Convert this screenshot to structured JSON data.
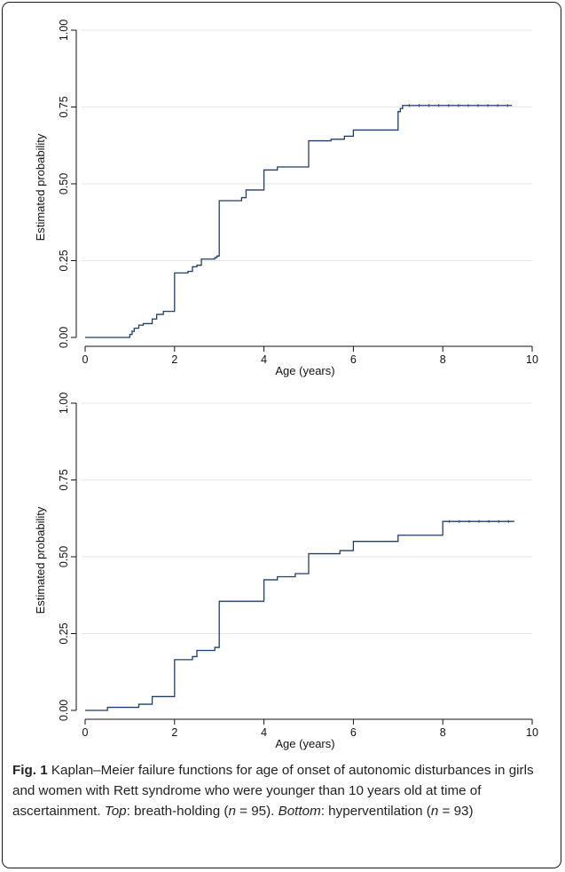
{
  "chart_data": [
    {
      "type": "line",
      "title": "",
      "xlabel": "Age (years)",
      "ylabel": "Estimated probability",
      "xlim": [
        0,
        10
      ],
      "ylim": [
        0,
        1
      ],
      "xticks": [
        "0",
        "2",
        "4",
        "6",
        "8",
        "10"
      ],
      "yticks": [
        "0.00",
        "0.25",
        "0.50",
        "0.75",
        "1.00"
      ],
      "grid": true,
      "step": true,
      "series": [
        {
          "color": "#1f3f6b",
          "x": [
            0,
            1.0,
            1.05,
            1.1,
            1.2,
            1.3,
            1.5,
            1.6,
            1.75,
            2.0,
            2.3,
            2.4,
            2.5,
            2.6,
            2.9,
            2.95,
            3.0,
            3.5,
            3.6,
            4.0,
            4.3,
            5.0,
            5.5,
            5.8,
            6.0,
            7.0,
            7.05,
            7.1,
            9.55
          ],
          "y": [
            0,
            0.01,
            0.02,
            0.03,
            0.04,
            0.045,
            0.06,
            0.075,
            0.085,
            0.21,
            0.215,
            0.23,
            0.235,
            0.255,
            0.26,
            0.265,
            0.445,
            0.455,
            0.48,
            0.545,
            0.555,
            0.64,
            0.645,
            0.655,
            0.675,
            0.735,
            0.745,
            0.755,
            0.755
          ]
        }
      ]
    },
    {
      "type": "line",
      "title": "",
      "xlabel": "Age (years)",
      "ylabel": "Estimated probability",
      "xlim": [
        0,
        10
      ],
      "ylim": [
        0,
        1
      ],
      "xticks": [
        "0",
        "2",
        "4",
        "6",
        "8",
        "10"
      ],
      "yticks": [
        "0.00",
        "0.25",
        "0.50",
        "0.75",
        "1.00"
      ],
      "grid": true,
      "step": true,
      "series": [
        {
          "color": "#1f3f6b",
          "x": [
            0,
            0.5,
            1.2,
            1.5,
            2.0,
            2.4,
            2.5,
            2.9,
            3.0,
            4.0,
            4.3,
            4.7,
            5.0,
            5.7,
            6.0,
            7.0,
            8.0,
            9.6
          ],
          "y": [
            0,
            0.01,
            0.02,
            0.045,
            0.165,
            0.175,
            0.195,
            0.205,
            0.355,
            0.425,
            0.435,
            0.445,
            0.51,
            0.52,
            0.55,
            0.57,
            0.615,
            0.615
          ]
        }
      ]
    }
  ],
  "caption": {
    "fig_label": "Fig. 1",
    "text_1": " Kaplan–Meier failure functions for age of onset of autonomic disturbances in girls and women with Rett syndrome who were younger than 10 years old at time of ascertainment. ",
    "top_label": "Top",
    "text_2": ": breath-holding (",
    "n_symbol_1": "n",
    "n_value_1": " = 95). ",
    "bottom_label": "Bottom",
    "text_3": ": hyperventilation (",
    "n_symbol_2": "n",
    "n_value_2": " = 93)"
  }
}
